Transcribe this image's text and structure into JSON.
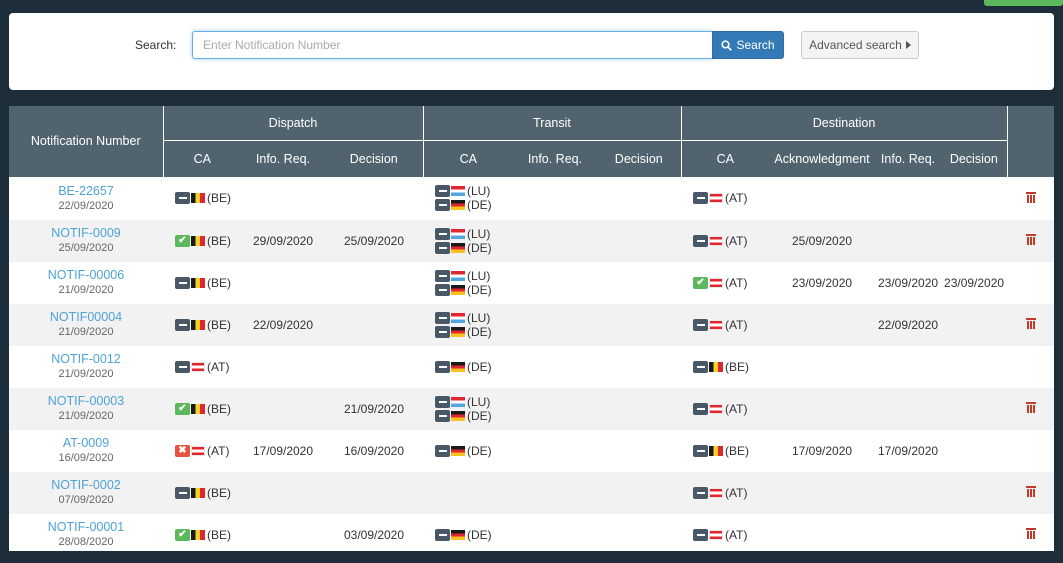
{
  "search": {
    "label": "Search:",
    "placeholder": "Enter Notification Number",
    "value": "",
    "button_label": "Search",
    "advanced_label": "Advanced search"
  },
  "table": {
    "group_headers": {
      "notification": "Notification Number",
      "dispatch": "Dispatch",
      "transit": "Transit",
      "destination": "Destination"
    },
    "sub_headers": {
      "dispatch": [
        "CA",
        "Info. Req.",
        "Decision"
      ],
      "transit": [
        "CA",
        "Info. Req.",
        "Decision"
      ],
      "destination": [
        "CA",
        "Acknowledgment",
        "Info. Req.",
        "Decision"
      ]
    },
    "rows": [
      {
        "id": "BE-22657",
        "date": "22/09/2020",
        "dispatch": {
          "cas": [
            {
              "status": "pending",
              "flag": "be",
              "code": "(BE)"
            }
          ],
          "info": "",
          "decision": ""
        },
        "transit": {
          "cas": [
            {
              "status": "pending",
              "flag": "lu",
              "code": "(LU)"
            },
            {
              "status": "pending",
              "flag": "de",
              "code": "(DE)"
            }
          ],
          "info": "",
          "decision": ""
        },
        "destination": {
          "cas": [
            {
              "status": "pending",
              "flag": "at",
              "code": "(AT)"
            }
          ],
          "ack": "",
          "info": "",
          "decision": ""
        },
        "deletable": true
      },
      {
        "id": "NOTIF-0009",
        "date": "25/09/2020",
        "dispatch": {
          "cas": [
            {
              "status": "ok",
              "flag": "be",
              "code": "(BE)"
            }
          ],
          "info": "29/09/2020",
          "decision": "25/09/2020"
        },
        "transit": {
          "cas": [
            {
              "status": "pending",
              "flag": "lu",
              "code": "(LU)"
            },
            {
              "status": "pending",
              "flag": "de",
              "code": "(DE)"
            }
          ],
          "info": "",
          "decision": ""
        },
        "destination": {
          "cas": [
            {
              "status": "pending",
              "flag": "at",
              "code": "(AT)"
            }
          ],
          "ack": "25/09/2020",
          "info": "",
          "decision": ""
        },
        "deletable": true
      },
      {
        "id": "NOTIF-00006",
        "date": "21/09/2020",
        "dispatch": {
          "cas": [
            {
              "status": "pending",
              "flag": "be",
              "code": "(BE)"
            }
          ],
          "info": "",
          "decision": ""
        },
        "transit": {
          "cas": [
            {
              "status": "pending",
              "flag": "lu",
              "code": "(LU)"
            },
            {
              "status": "pending",
              "flag": "de",
              "code": "(DE)"
            }
          ],
          "info": "",
          "decision": ""
        },
        "destination": {
          "cas": [
            {
              "status": "ok",
              "flag": "at",
              "code": "(AT)"
            }
          ],
          "ack": "23/09/2020",
          "info": "23/09/2020",
          "decision": "23/09/2020"
        },
        "deletable": false
      },
      {
        "id": "NOTIF00004",
        "date": "21/09/2020",
        "dispatch": {
          "cas": [
            {
              "status": "pending",
              "flag": "be",
              "code": "(BE)"
            }
          ],
          "info": "22/09/2020",
          "decision": ""
        },
        "transit": {
          "cas": [
            {
              "status": "pending",
              "flag": "lu",
              "code": "(LU)"
            },
            {
              "status": "pending",
              "flag": "de",
              "code": "(DE)"
            }
          ],
          "info": "",
          "decision": ""
        },
        "destination": {
          "cas": [
            {
              "status": "pending",
              "flag": "at",
              "code": "(AT)"
            }
          ],
          "ack": "",
          "info": "22/09/2020",
          "decision": ""
        },
        "deletable": true
      },
      {
        "id": "NOTIF-0012",
        "date": "21/09/2020",
        "dispatch": {
          "cas": [
            {
              "status": "pending",
              "flag": "at",
              "code": "(AT)"
            }
          ],
          "info": "",
          "decision": ""
        },
        "transit": {
          "cas": [
            {
              "status": "pending",
              "flag": "de",
              "code": "(DE)"
            }
          ],
          "info": "",
          "decision": ""
        },
        "destination": {
          "cas": [
            {
              "status": "pending",
              "flag": "be",
              "code": "(BE)"
            }
          ],
          "ack": "",
          "info": "",
          "decision": ""
        },
        "deletable": false
      },
      {
        "id": "NOTIF-00003",
        "date": "21/09/2020",
        "dispatch": {
          "cas": [
            {
              "status": "ok",
              "flag": "be",
              "code": "(BE)"
            }
          ],
          "info": "",
          "decision": "21/09/2020"
        },
        "transit": {
          "cas": [
            {
              "status": "pending",
              "flag": "lu",
              "code": "(LU)"
            },
            {
              "status": "pending",
              "flag": "de",
              "code": "(DE)"
            }
          ],
          "info": "",
          "decision": ""
        },
        "destination": {
          "cas": [
            {
              "status": "pending",
              "flag": "at",
              "code": "(AT)"
            }
          ],
          "ack": "",
          "info": "",
          "decision": ""
        },
        "deletable": true
      },
      {
        "id": "AT-0009",
        "date": "16/09/2020",
        "dispatch": {
          "cas": [
            {
              "status": "rejected",
              "flag": "at",
              "code": "(AT)"
            }
          ],
          "info": "17/09/2020",
          "decision": "16/09/2020"
        },
        "transit": {
          "cas": [
            {
              "status": "pending",
              "flag": "de",
              "code": "(DE)"
            }
          ],
          "info": "",
          "decision": ""
        },
        "destination": {
          "cas": [
            {
              "status": "pending",
              "flag": "be",
              "code": "(BE)"
            }
          ],
          "ack": "17/09/2020",
          "info": "17/09/2020",
          "decision": ""
        },
        "deletable": false
      },
      {
        "id": "NOTIF-0002",
        "date": "07/09/2020",
        "dispatch": {
          "cas": [
            {
              "status": "pending",
              "flag": "be",
              "code": "(BE)"
            }
          ],
          "info": "",
          "decision": ""
        },
        "transit": {
          "cas": [],
          "info": "",
          "decision": ""
        },
        "destination": {
          "cas": [
            {
              "status": "pending",
              "flag": "at",
              "code": "(AT)"
            }
          ],
          "ack": "",
          "info": "",
          "decision": ""
        },
        "deletable": true
      },
      {
        "id": "NOTIF-00001",
        "date": "28/08/2020",
        "dispatch": {
          "cas": [
            {
              "status": "ok",
              "flag": "be",
              "code": "(BE)"
            }
          ],
          "info": "",
          "decision": "03/09/2020"
        },
        "transit": {
          "cas": [
            {
              "status": "pending",
              "flag": "de",
              "code": "(DE)"
            }
          ],
          "info": "",
          "decision": ""
        },
        "destination": {
          "cas": [
            {
              "status": "pending",
              "flag": "at",
              "code": "(AT)"
            }
          ],
          "ack": "",
          "info": "",
          "decision": ""
        },
        "deletable": true
      }
    ]
  },
  "colors": {
    "header_bg": "#50636f",
    "link": "#4da3d4",
    "primary": "#337ab7",
    "ok": "#5cb85c",
    "rejected": "#e5533d",
    "pending": "#485866",
    "delete": "#c0392b"
  },
  "icons": {
    "search": "search-icon",
    "advanced": "caret-right-icon",
    "delete": "trash-icon",
    "status_ok": "check-icon",
    "status_rejected": "x-icon",
    "status_pending": "minus-icon"
  }
}
